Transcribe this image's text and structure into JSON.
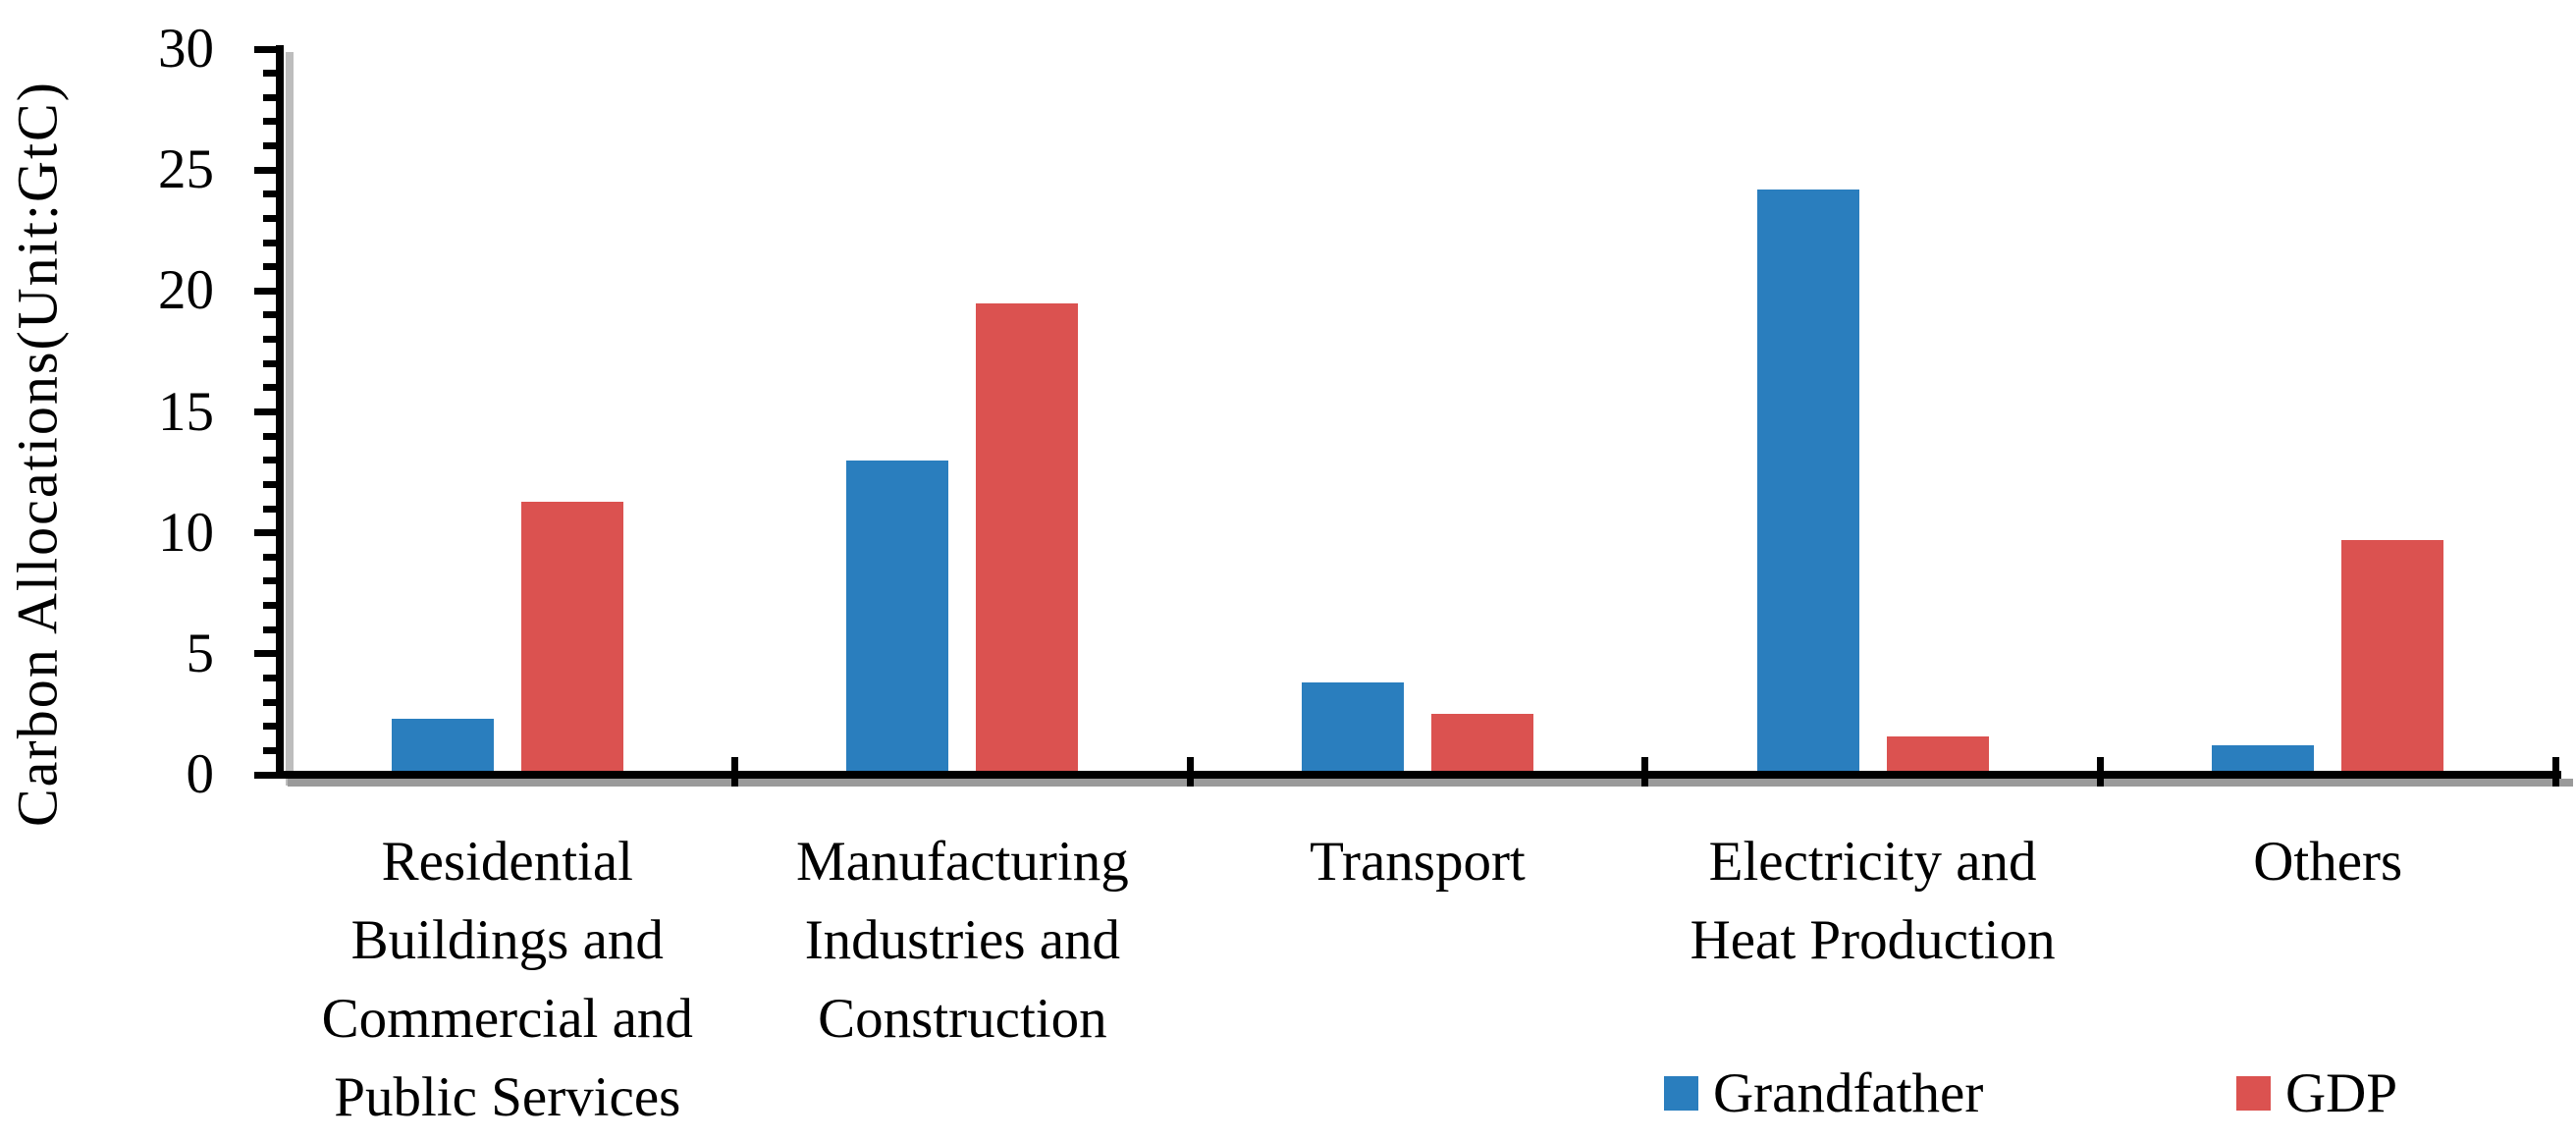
{
  "chart_data": {
    "type": "bar",
    "title": "",
    "xlabel": "",
    "ylabel": "Carbon Allocations(Unit:GtC)",
    "ylim": [
      0,
      30
    ],
    "yticks": [
      0,
      5,
      10,
      15,
      20,
      25,
      30
    ],
    "minor_tick_step": 1,
    "grid": false,
    "legend_position": "bottom-right",
    "categories": [
      "Residential\nBuildings and\nCommercial and\nPublic Services",
      "Manufacturing\nIndustries and\nConstruction",
      "Transport",
      "Electricity and\nHeat Production",
      "Others"
    ],
    "series": [
      {
        "name": "Grandfather",
        "color": "#2A7EBE",
        "values": [
          2.3,
          13.0,
          3.8,
          24.2,
          1.2
        ]
      },
      {
        "name": "GDP",
        "color": "#DB5250",
        "values": [
          11.3,
          19.5,
          2.5,
          1.6,
          9.7
        ]
      }
    ],
    "axis_color": "#000000",
    "axis_shadow_color": "#9a9a9a"
  }
}
